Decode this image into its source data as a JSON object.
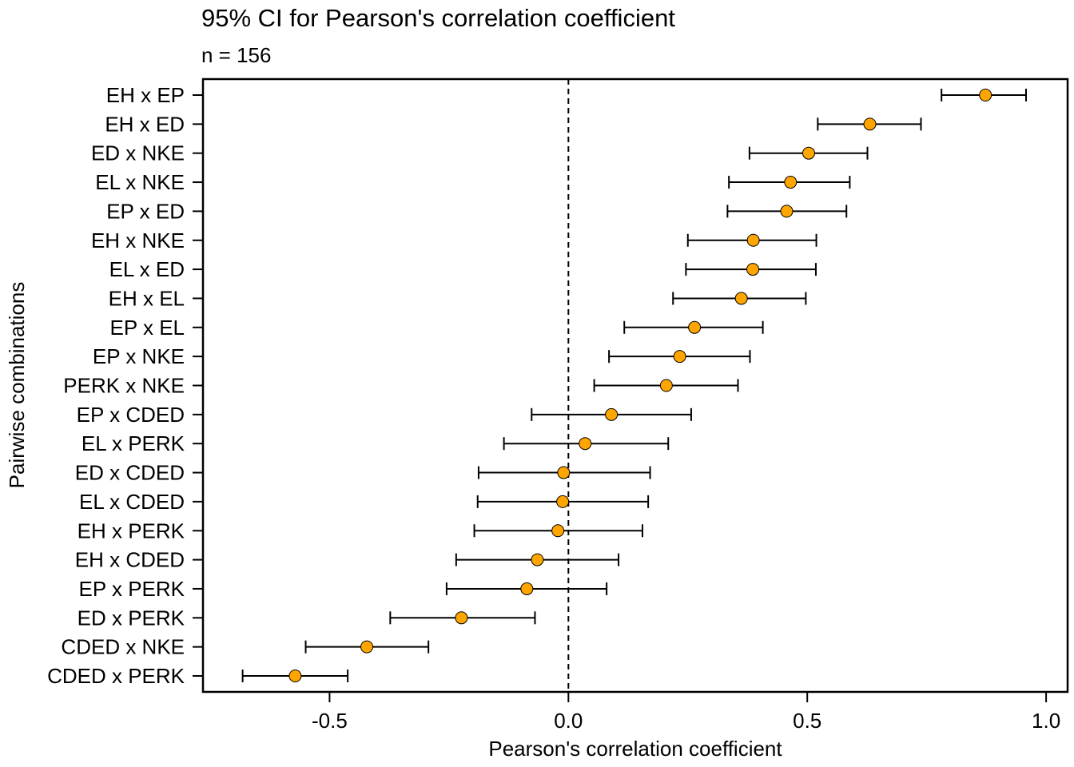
{
  "chart_data": {
    "type": "errorbar",
    "title": "95% CI for Pearson's correlation coefficient",
    "subtitle": "n =  156",
    "xlabel": "Pearson's correlation coefficient",
    "ylabel": "Pairwise combinations",
    "xlim": [
      -0.765,
      1.045
    ],
    "x_ticks": [
      -0.5,
      0.0,
      0.5,
      1.0
    ],
    "x_tick_labels": [
      "-0.5",
      "0.0",
      "0.5",
      "1.0"
    ],
    "reference_line": 0.0,
    "grid": false,
    "point_color": "#FFA500",
    "categories": [
      "EH x EP",
      "EH x ED",
      "ED x NKE",
      "EL x NKE",
      "EP x ED",
      "EH x NKE",
      "EL x ED",
      "EH x EL",
      "EP x EL",
      "EP x NKE",
      "PERK x NKE",
      "EP x CDED",
      "EL x PERK",
      "ED x CDED",
      "EL x CDED",
      "EH x PERK",
      "EH x CDED",
      "EP x PERK",
      "ED x PERK",
      "CDED x NKE",
      "CDED x PERK"
    ],
    "estimate": [
      0.873,
      0.631,
      0.503,
      0.465,
      0.457,
      0.387,
      0.386,
      0.362,
      0.264,
      0.233,
      0.205,
      0.09,
      0.035,
      -0.01,
      -0.012,
      -0.022,
      -0.065,
      -0.087,
      -0.224,
      -0.422,
      -0.572
    ],
    "lower": [
      0.781,
      0.522,
      0.379,
      0.336,
      0.333,
      0.25,
      0.246,
      0.219,
      0.117,
      0.085,
      0.054,
      -0.077,
      -0.135,
      -0.188,
      -0.19,
      -0.197,
      -0.235,
      -0.255,
      -0.373,
      -0.55,
      -0.682
    ],
    "upper": [
      0.958,
      0.738,
      0.626,
      0.589,
      0.582,
      0.519,
      0.518,
      0.497,
      0.407,
      0.38,
      0.355,
      0.257,
      0.209,
      0.171,
      0.167,
      0.155,
      0.105,
      0.08,
      -0.07,
      -0.293,
      -0.462
    ]
  }
}
